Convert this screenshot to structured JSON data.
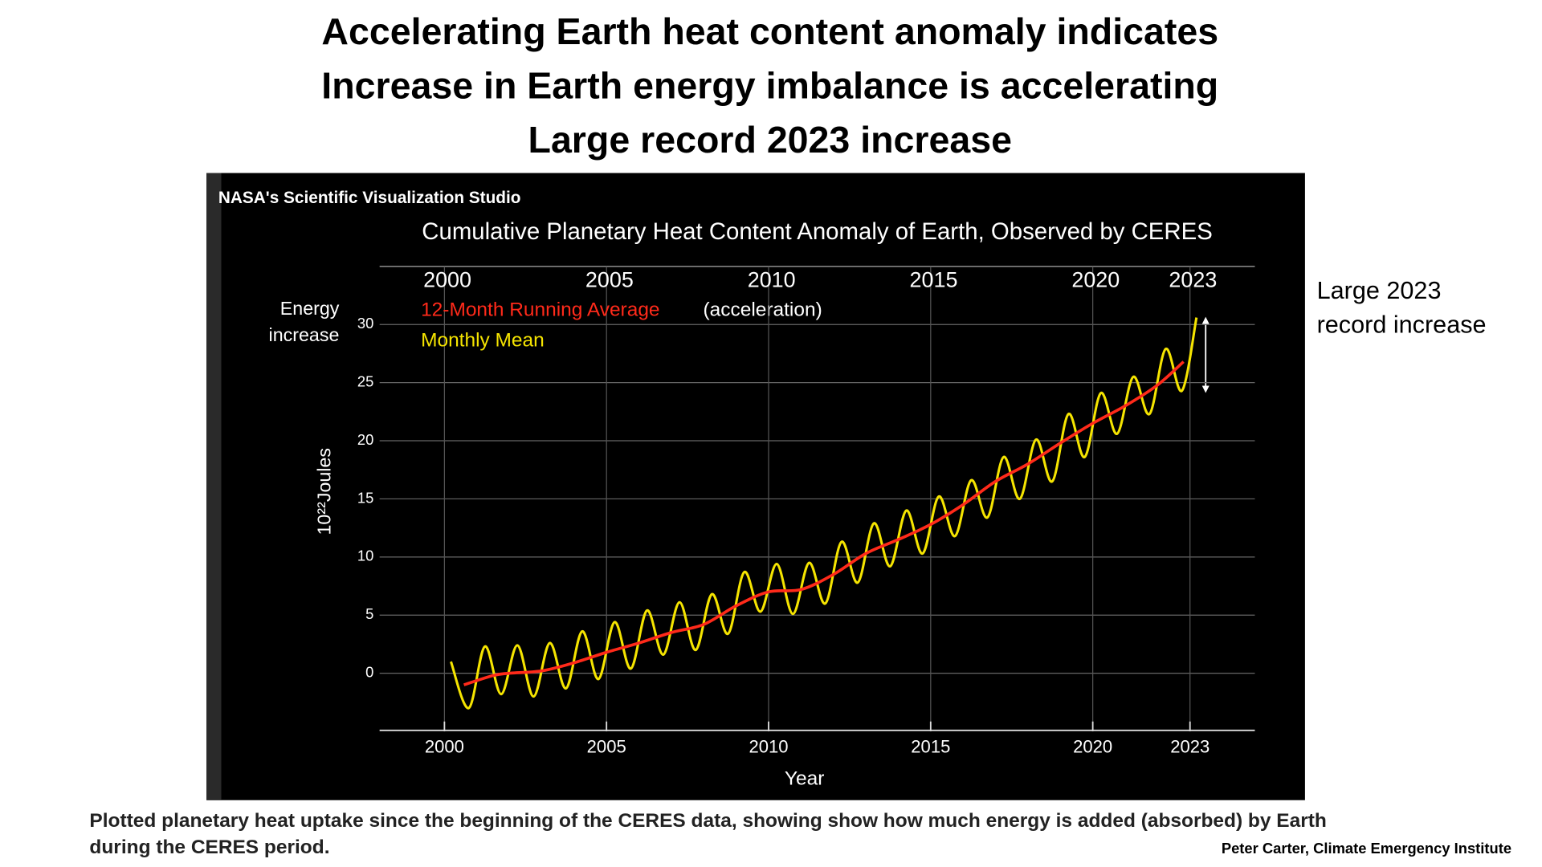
{
  "title_lines": [
    "Accelerating Earth heat content anomaly indicates",
    "Increase in Earth energy imbalance is accelerating",
    "Large record 2023 increase"
  ],
  "note_lines": [
    "Large 2023",
    "record increase"
  ],
  "caption_lines": [
    "Plotted planetary heat uptake since the beginning of the CERES data, showing show how much energy is added (absorbed) by Earth",
    "during the CERES period."
  ],
  "credit": "Peter Carter, Climate Emergency Institute",
  "chart_data": {
    "type": "line",
    "source": "NASA's Scientific Visualization Studio",
    "title": "Cumulative Planetary Heat Content Anomaly of Earth, Observed by CERES",
    "y_label_lines": [
      "Energy",
      "increase"
    ],
    "y_unit": "10²²Joules",
    "x_label": "Year",
    "annotation": "(acceleration)",
    "xlim": [
      1998,
      2025
    ],
    "xticks": [
      2000,
      2005,
      2010,
      2015,
      2020,
      2023
    ],
    "ylim": [
      -5,
      35
    ],
    "yticks": [
      0,
      5,
      10,
      15,
      20,
      25,
      30
    ],
    "grid": true,
    "series": [
      {
        "name": "12-Month Running Average",
        "color": "#ff2a1a",
        "x": [
          2000.6,
          2001.5,
          2002,
          2003,
          2004,
          2005,
          2006,
          2007,
          2008,
          2009,
          2010,
          2011,
          2012,
          2013,
          2014,
          2015,
          2016,
          2017,
          2018,
          2019,
          2020,
          2021,
          2022,
          2022.8
        ],
        "values": [
          -1.0,
          -0.2,
          0,
          0.2,
          0.9,
          1.8,
          2.6,
          3.5,
          4.2,
          5.8,
          7.0,
          7.2,
          8.5,
          10.3,
          11.5,
          12.8,
          14.5,
          16.5,
          18.0,
          19.8,
          21.5,
          23.0,
          24.8,
          26.8
        ]
      },
      {
        "name": "Monthly Mean",
        "color": "#f5e400",
        "x": [
          2000.2,
          2000.75,
          2001.25,
          2001.75,
          2002.25,
          2002.75,
          2003.25,
          2003.75,
          2004.25,
          2004.75,
          2005.25,
          2005.75,
          2006.25,
          2006.75,
          2007.25,
          2007.75,
          2008.25,
          2008.75,
          2009.25,
          2009.75,
          2010.25,
          2010.75,
          2011.25,
          2011.75,
          2012.25,
          2012.75,
          2013.25,
          2013.75,
          2014.25,
          2014.75,
          2015.25,
          2015.75,
          2016.25,
          2016.75,
          2017.25,
          2017.75,
          2018.25,
          2018.75,
          2019.25,
          2019.75,
          2020.25,
          2020.75,
          2021.25,
          2021.75,
          2022.25,
          2022.75,
          2023.2
        ],
        "values": [
          1.0,
          -3.0,
          2.3,
          -1.8,
          2.4,
          -2.0,
          2.6,
          -1.3,
          3.6,
          -0.5,
          4.4,
          0.4,
          5.4,
          1.6,
          6.1,
          2.0,
          6.8,
          3.4,
          8.7,
          5.3,
          9.4,
          5.1,
          9.5,
          6.0,
          11.3,
          7.8,
          12.9,
          9.2,
          14.0,
          10.3,
          15.2,
          11.8,
          16.6,
          13.4,
          18.6,
          15.0,
          20.1,
          16.5,
          22.3,
          18.6,
          24.1,
          20.6,
          25.5,
          22.3,
          27.9,
          24.3,
          30.6
        ]
      }
    ]
  }
}
